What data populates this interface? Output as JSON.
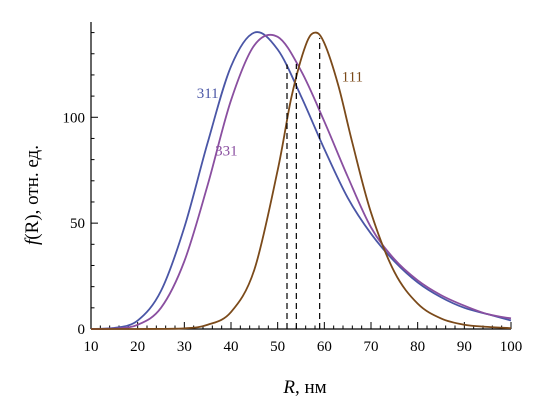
{
  "chart_data": {
    "type": "line",
    "xlabel_italic": "R",
    "xlabel_rest": ", нм",
    "ylabel_italic": "f",
    "ylabel_rest": "(R), отн. ед.",
    "xlim": [
      10,
      100
    ],
    "ylim": [
      0,
      145
    ],
    "xticks": [
      10,
      20,
      30,
      40,
      50,
      60,
      70,
      80,
      90,
      100
    ],
    "yticks": [
      0,
      50,
      100
    ],
    "grid": false,
    "series": [
      {
        "name": "311",
        "color": "#4a56a6",
        "label_at": [
          35,
          109
        ],
        "x": [
          10,
          15,
          20,
          25,
          30,
          35,
          40,
          45,
          50,
          55,
          60,
          65,
          70,
          75,
          80,
          85,
          90,
          95,
          100
        ],
        "y": [
          0.0,
          0.5,
          4,
          18,
          48,
          88,
          124,
          140,
          132,
          110,
          85,
          62,
          45,
          32,
          22,
          15,
          10,
          7,
          4
        ]
      },
      {
        "name": "331",
        "color": "#8a4fa0",
        "label_at": [
          39,
          82
        ],
        "x": [
          10,
          15,
          20,
          25,
          30,
          35,
          40,
          45,
          50,
          55,
          60,
          65,
          70,
          75,
          80,
          85,
          90,
          95,
          100
        ],
        "y": [
          0.0,
          0.2,
          2,
          10,
          32,
          68,
          108,
          134,
          138,
          122,
          98,
          72,
          48,
          33,
          23,
          16,
          11,
          7,
          5
        ]
      },
      {
        "name": "111",
        "color": "#7b4a1a",
        "label_at": [
          66,
          117
        ],
        "x": [
          10,
          20,
          30,
          35,
          40,
          45,
          50,
          53,
          56,
          58,
          60,
          63,
          66,
          70,
          75,
          80,
          85,
          90,
          95,
          100
        ],
        "y": [
          0.0,
          0.0,
          0.3,
          2,
          8,
          28,
          75,
          110,
          134,
          140,
          135,
          115,
          88,
          55,
          27,
          12,
          5,
          2,
          1,
          0.4
        ]
      }
    ],
    "vlines": [
      52,
      54,
      59
    ]
  }
}
